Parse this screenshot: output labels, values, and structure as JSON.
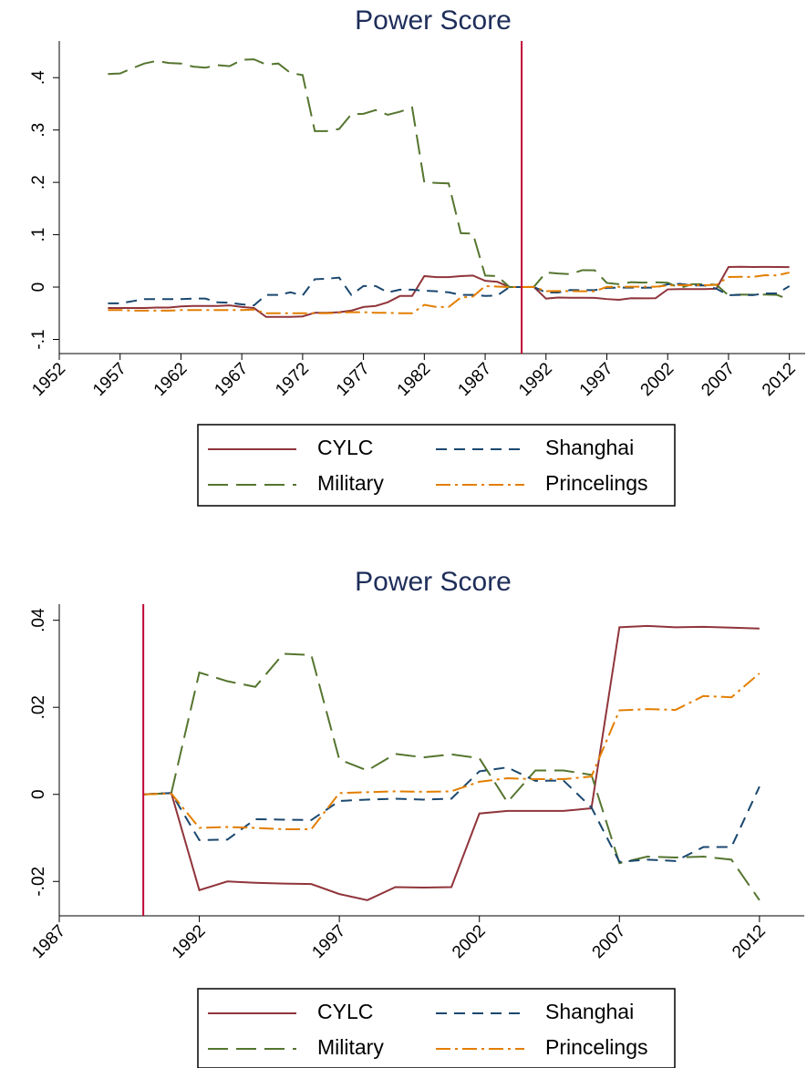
{
  "chart_data": [
    {
      "type": "line",
      "title": "Power Score",
      "x": [
        1956,
        1957,
        1958,
        1959,
        1960,
        1961,
        1962,
        1963,
        1964,
        1965,
        1966,
        1967,
        1968,
        1969,
        1970,
        1971,
        1972,
        1973,
        1974,
        1975,
        1976,
        1977,
        1978,
        1979,
        1980,
        1981,
        1982,
        1983,
        1984,
        1985,
        1986,
        1987,
        1988,
        1989,
        1990,
        1991,
        1992,
        1993,
        1994,
        1995,
        1996,
        1997,
        1998,
        1999,
        2000,
        2001,
        2002,
        2003,
        2004,
        2005,
        2006,
        2007,
        2008,
        2009,
        2010,
        2011,
        2012
      ],
      "series": [
        {
          "name": "CYLC",
          "color": "#90353b",
          "line_style": "solid",
          "values": [
            -0.04,
            -0.04,
            -0.04,
            -0.04,
            -0.039,
            -0.039,
            -0.037,
            -0.036,
            -0.036,
            -0.036,
            -0.035,
            -0.038,
            -0.04,
            -0.057,
            -0.057,
            -0.057,
            -0.056,
            -0.049,
            -0.049,
            -0.048,
            -0.045,
            -0.038,
            -0.036,
            -0.029,
            -0.017,
            -0.017,
            0.021,
            0.019,
            0.019,
            0.021,
            0.022,
            0.012,
            0.01,
            0,
            0,
            0.0003,
            -0.022,
            -0.02,
            -0.0203,
            -0.0205,
            -0.0206,
            -0.0229,
            -0.0243,
            -0.0213,
            -0.0214,
            -0.0213,
            -0.0044,
            -0.0038,
            -0.0038,
            -0.0038,
            -0.0032,
            0.0384,
            0.0387,
            0.0384,
            0.0385,
            0.0383,
            0.0381
          ]
        },
        {
          "name": "Military",
          "color": "#55752f",
          "line_style": "longdash",
          "values": [
            0.407,
            0.408,
            0.418,
            0.427,
            0.432,
            0.428,
            0.427,
            0.421,
            0.419,
            0.424,
            0.422,
            0.434,
            0.435,
            0.425,
            0.427,
            0.409,
            0.405,
            0.298,
            0.298,
            0.302,
            0.33,
            0.331,
            0.338,
            0.329,
            0.335,
            0.343,
            0.2,
            0.199,
            0.198,
            0.103,
            0.102,
            0.022,
            0.021,
            0,
            0,
            0.0003,
            0.028,
            0.026,
            0.0247,
            0.0323,
            0.032,
            0.008,
            0.0055,
            0.0093,
            0.0085,
            0.0092,
            0.0083,
            -0.0018,
            0.0055,
            0.0055,
            0.0045,
            -0.0158,
            -0.0143,
            -0.0145,
            -0.0143,
            -0.015,
            -0.0243
          ]
        },
        {
          "name": "Shanghai",
          "color": "#1a476f",
          "line_style": "dash",
          "values": [
            -0.031,
            -0.031,
            -0.027,
            -0.023,
            -0.023,
            -0.023,
            -0.023,
            -0.022,
            -0.022,
            -0.029,
            -0.03,
            -0.033,
            -0.035,
            -0.015,
            -0.015,
            -0.01,
            -0.016,
            0.015,
            0.016,
            0.018,
            -0.015,
            0.002,
            0.002,
            -0.01,
            -0.005,
            -0.005,
            -0.007,
            -0.008,
            -0.01,
            -0.015,
            -0.015,
            -0.017,
            -0.016,
            0,
            0,
            0.0003,
            -0.0105,
            -0.0104,
            -0.0057,
            -0.0058,
            -0.0059,
            -0.0015,
            -0.0012,
            -0.001,
            -0.0012,
            -0.001,
            0.0053,
            0.0062,
            0.0031,
            0.0032,
            -0.003,
            -0.0155,
            -0.015,
            -0.0153,
            -0.0121,
            -0.0121,
            0.0018
          ]
        },
        {
          "name": "Princelings",
          "color": "#e37e00",
          "line_style": "dashdot",
          "values": [
            -0.044,
            -0.044,
            -0.045,
            -0.045,
            -0.045,
            -0.045,
            -0.044,
            -0.044,
            -0.044,
            -0.044,
            -0.044,
            -0.044,
            -0.043,
            -0.05,
            -0.05,
            -0.05,
            -0.05,
            -0.05,
            -0.05,
            -0.049,
            -0.048,
            -0.048,
            -0.049,
            -0.049,
            -0.05,
            -0.05,
            -0.034,
            -0.038,
            -0.038,
            -0.02,
            -0.018,
            0.002,
            0.001,
            0,
            0,
            0.0002,
            -0.0077,
            -0.0075,
            -0.0077,
            -0.008,
            -0.008,
            0.0003,
            0.0005,
            0.0007,
            0.0006,
            0.0007,
            0.0029,
            0.0037,
            0.0035,
            0.0035,
            0.0041,
            0.0193,
            0.0196,
            0.0194,
            0.0226,
            0.0223,
            0.0278
          ]
        }
      ],
      "xlim": [
        1952,
        2013.3
      ],
      "xticks": [
        1952,
        1957,
        1962,
        1967,
        1972,
        1977,
        1982,
        1987,
        1992,
        1997,
        2002,
        2007,
        2012
      ],
      "ylim": [
        -0.127,
        0.47
      ],
      "yticks": [
        {
          "value": -0.1,
          "label": "-.1"
        },
        0,
        {
          "value": 0.1,
          "label": ".1"
        },
        {
          "value": 0.2,
          "label": ".2"
        },
        {
          "value": 0.3,
          "label": ".3"
        },
        {
          "value": 0.4,
          "label": ".4"
        }
      ],
      "xline": 1990,
      "xline_color": "#c10534",
      "grid": false,
      "legend": "bottom"
    },
    {
      "type": "line",
      "title": "Power Score",
      "x": [
        1990,
        1991,
        1992,
        1993,
        1994,
        1995,
        1996,
        1997,
        1998,
        1999,
        2000,
        2001,
        2002,
        2003,
        2004,
        2005,
        2006,
        2007,
        2008,
        2009,
        2010,
        2011,
        2012
      ],
      "series": [
        {
          "name": "CYLC",
          "color": "#90353b",
          "line_style": "solid",
          "values": [
            0,
            0.0003,
            -0.022,
            -0.02,
            -0.0203,
            -0.0205,
            -0.0206,
            -0.0229,
            -0.0243,
            -0.0213,
            -0.0214,
            -0.0213,
            -0.0044,
            -0.0038,
            -0.0038,
            -0.0038,
            -0.0032,
            0.0384,
            0.0387,
            0.0384,
            0.0385,
            0.0383,
            0.0381
          ]
        },
        {
          "name": "Military",
          "color": "#55752f",
          "line_style": "longdash",
          "values": [
            0,
            0.0003,
            0.028,
            0.026,
            0.0247,
            0.0323,
            0.032,
            0.008,
            0.0055,
            0.0093,
            0.0085,
            0.0092,
            0.0083,
            -0.0018,
            0.0055,
            0.0055,
            0.0045,
            -0.0158,
            -0.0143,
            -0.0145,
            -0.0143,
            -0.015,
            -0.0243
          ]
        },
        {
          "name": "Shanghai",
          "color": "#1a476f",
          "line_style": "dash",
          "values": [
            0,
            0.0003,
            -0.0105,
            -0.0104,
            -0.0057,
            -0.0058,
            -0.0059,
            -0.0015,
            -0.0012,
            -0.001,
            -0.0012,
            -0.001,
            0.0053,
            0.0062,
            0.0031,
            0.0032,
            -0.003,
            -0.0155,
            -0.015,
            -0.0153,
            -0.0121,
            -0.0121,
            0.0018
          ]
        },
        {
          "name": "Princelings",
          "color": "#e37e00",
          "line_style": "dashdot",
          "values": [
            0,
            0.0002,
            -0.0077,
            -0.0075,
            -0.0077,
            -0.008,
            -0.008,
            0.0003,
            0.0005,
            0.0007,
            0.0006,
            0.0007,
            0.0029,
            0.0037,
            0.0035,
            0.0035,
            0.0041,
            0.0193,
            0.0196,
            0.0194,
            0.0226,
            0.0223,
            0.0278
          ]
        }
      ],
      "xlim": [
        1987,
        2013.6
      ],
      "xticks": [
        1987,
        1992,
        1997,
        2002,
        2007,
        2012
      ],
      "ylim": [
        -0.0279,
        0.0437
      ],
      "yticks": [
        {
          "value": -0.02,
          "label": "-.02"
        },
        0,
        {
          "value": 0.02,
          "label": ".02"
        },
        {
          "value": 0.04,
          "label": ".04"
        }
      ],
      "xline": 1990,
      "xline_color": "#c10534",
      "grid": false,
      "legend": "bottom"
    }
  ]
}
